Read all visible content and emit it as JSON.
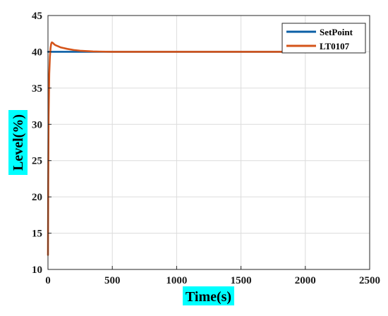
{
  "chart_data": {
    "type": "line",
    "xlabel": "Time(s)",
    "ylabel": "Level(%)",
    "xlim": [
      0,
      2500
    ],
    "ylim": [
      10,
      45
    ],
    "xticks": [
      0,
      500,
      1000,
      1500,
      2000,
      2500
    ],
    "yticks": [
      10,
      15,
      20,
      25,
      30,
      35,
      40,
      45
    ],
    "grid": true,
    "legend_position": "top-right",
    "label_highlight_color": "#00ffff",
    "series": [
      {
        "name": "SetPoint",
        "color": "#0b5fa5",
        "x": [
          0,
          2000
        ],
        "y": [
          40,
          40
        ]
      },
      {
        "name": "LT0107",
        "color": "#d4541a",
        "x": [
          0,
          2,
          5,
          10,
          15,
          20,
          25,
          30,
          40,
          50,
          60,
          80,
          100,
          150,
          200,
          250,
          300,
          350,
          400,
          500,
          600,
          800,
          1000,
          1500,
          2000
        ],
        "y": [
          12,
          22,
          31,
          37,
          39.3,
          40.5,
          41.1,
          41.3,
          41.2,
          41.0,
          40.9,
          40.75,
          40.6,
          40.4,
          40.25,
          40.15,
          40.1,
          40.05,
          40.03,
          40.0,
          40.0,
          40.0,
          40.0,
          40.0,
          40.0
        ]
      }
    ]
  }
}
